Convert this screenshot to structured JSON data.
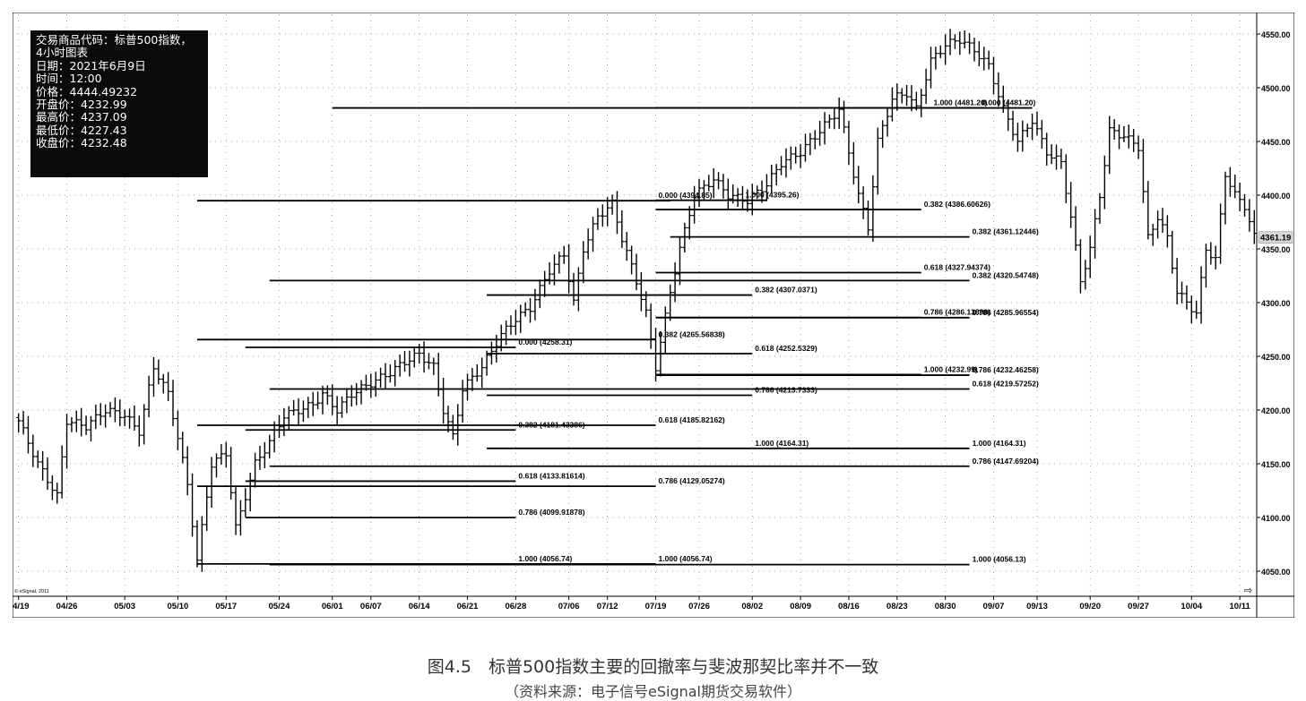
{
  "info": {
    "line1": "交易商品代码：标普500指数，",
    "line2": "4小时图表",
    "date": "日期：2021年6月9日",
    "time": "时间：12:00",
    "price": "价格：4444.49232",
    "open": "开盘价：4232.99",
    "high": "最高价：4237.09",
    "low": "最低价：4227.43",
    "close": "收盘价：4232.48"
  },
  "watermark": "© eSignal, 2011",
  "caption": {
    "title": "图4.5　标普500指数主要的回撤率与斐波那契比率并不一致",
    "source": "（资料来源：电子信号eSignal期货交易软件）"
  },
  "chart_data": {
    "type": "line",
    "chart_style": "OHLC bars (4-hour)",
    "ylim": [
      4040,
      4560
    ],
    "y_ticks": [
      "4550.00",
      "4500.00",
      "4450.00",
      "4400.00",
      "4350.00",
      "4300.00",
      "4250.00",
      "4200.00",
      "4150.00",
      "4100.00",
      "4050.00"
    ],
    "y_tick_values": [
      4550,
      4500,
      4450,
      4400,
      4350,
      4300,
      4250,
      4200,
      4150,
      4100,
      4050
    ],
    "x_tick_labels": [
      "04/19",
      "04/26",
      "05/03",
      "05/10",
      "05/17",
      "05/24",
      "06/01",
      "06/07",
      "06/14",
      "06/21",
      "06/28",
      "07/06",
      "07/12",
      "07/19",
      "07/26",
      "08/02",
      "08/09",
      "08/16",
      "08/23",
      "08/30",
      "09/07",
      "09/13",
      "09/20",
      "09/27",
      "10/04",
      "10/11"
    ],
    "x_tick_index": [
      0,
      10,
      22,
      33,
      43,
      54,
      65,
      73,
      83,
      93,
      103,
      114,
      122,
      132,
      141,
      152,
      162,
      172,
      182,
      192,
      202,
      211,
      222,
      232,
      243,
      253
    ],
    "last_price": {
      "value": 4361.19,
      "label": "4361.19"
    },
    "grid": "dotted",
    "price_anchors": [
      [
        0,
        4190
      ],
      [
        4,
        4150
      ],
      [
        8,
        4120
      ],
      [
        10,
        4190
      ],
      [
        14,
        4185
      ],
      [
        18,
        4200
      ],
      [
        22,
        4195
      ],
      [
        25,
        4180
      ],
      [
        28,
        4240
      ],
      [
        31,
        4215
      ],
      [
        33,
        4175
      ],
      [
        35,
        4130
      ],
      [
        37,
        4060
      ],
      [
        40,
        4150
      ],
      [
        43,
        4160
      ],
      [
        45,
        4090
      ],
      [
        47,
        4120
      ],
      [
        49,
        4150
      ],
      [
        52,
        4170
      ],
      [
        55,
        4195
      ],
      [
        58,
        4200
      ],
      [
        61,
        4205
      ],
      [
        63,
        4215
      ],
      [
        66,
        4200
      ],
      [
        69,
        4215
      ],
      [
        73,
        4225
      ],
      [
        77,
        4235
      ],
      [
        80,
        4245
      ],
      [
        83,
        4252
      ],
      [
        86,
        4240
      ],
      [
        88,
        4200
      ],
      [
        90,
        4175
      ],
      [
        92,
        4220
      ],
      [
        96,
        4240
      ],
      [
        100,
        4270
      ],
      [
        103,
        4285
      ],
      [
        106,
        4295
      ],
      [
        110,
        4330
      ],
      [
        113,
        4345
      ],
      [
        115,
        4300
      ],
      [
        117,
        4350
      ],
      [
        120,
        4380
      ],
      [
        123,
        4392
      ],
      [
        125,
        4360
      ],
      [
        128,
        4320
      ],
      [
        130,
        4290
      ],
      [
        132,
        4240
      ],
      [
        135,
        4310
      ],
      [
        137,
        4350
      ],
      [
        140,
        4400
      ],
      [
        144,
        4415
      ],
      [
        147,
        4400
      ],
      [
        151,
        4395
      ],
      [
        155,
        4410
      ],
      [
        158,
        4430
      ],
      [
        162,
        4440
      ],
      [
        166,
        4460
      ],
      [
        170,
        4480
      ],
      [
        172,
        4440
      ],
      [
        174,
        4400
      ],
      [
        176,
        4370
      ],
      [
        178,
        4450
      ],
      [
        181,
        4490
      ],
      [
        184,
        4495
      ],
      [
        186,
        4480
      ],
      [
        189,
        4525
      ],
      [
        192,
        4540
      ],
      [
        195,
        4545
      ],
      [
        198,
        4535
      ],
      [
        201,
        4520
      ],
      [
        204,
        4480
      ],
      [
        207,
        4450
      ],
      [
        210,
        4470
      ],
      [
        213,
        4440
      ],
      [
        216,
        4430
      ],
      [
        218,
        4380
      ],
      [
        220,
        4320
      ],
      [
        222,
        4350
      ],
      [
        224,
        4400
      ],
      [
        226,
        4460
      ],
      [
        229,
        4455
      ],
      [
        232,
        4445
      ],
      [
        234,
        4360
      ],
      [
        236,
        4380
      ],
      [
        238,
        4360
      ],
      [
        240,
        4310
      ],
      [
        242,
        4300
      ],
      [
        244,
        4290
      ],
      [
        246,
        4350
      ],
      [
        248,
        4340
      ],
      [
        250,
        4420
      ],
      [
        252,
        4400
      ],
      [
        254,
        4390
      ],
      [
        256,
        4361
      ]
    ],
    "fib_lines": [
      {
        "label": "0.000 (4481.20)",
        "y": 4481.2,
        "x0": 65,
        "x1": 210,
        "label_x": 199
      },
      {
        "label": "1.000 (4481.20)",
        "y": 4481.2,
        "x0": 132,
        "x1": 200,
        "label_x": 189
      },
      {
        "label": "0.000 (4394.85)",
        "y": 4394.85,
        "x0": 37,
        "x1": 135,
        "label_x": 132
      },
      {
        "label": "1.000 (4395.26)",
        "y": 4395.26,
        "x0": 132,
        "x1": 155,
        "label_x": 150
      },
      {
        "label": "0.382 (4386.60626)",
        "y": 4386.61,
        "x0": 132,
        "x1": 187,
        "label_x": 187
      },
      {
        "label": "0.382 (4361.12446)",
        "y": 4361.12,
        "x0": 135,
        "x1": 197,
        "label_x": 197
      },
      {
        "label": "0.618 (4327.94374)",
        "y": 4327.94,
        "x0": 132,
        "x1": 187,
        "label_x": 187
      },
      {
        "label": "0.382 (4320.54748)",
        "y": 4320.55,
        "x0": 52,
        "x1": 197,
        "label_x": 197
      },
      {
        "label": "0.382 (4307.0371)",
        "y": 4307.04,
        "x0": 97,
        "x1": 152,
        "label_x": 152
      },
      {
        "label": "0.786 (4286.13898)",
        "y": 4286.14,
        "x0": 132,
        "x1": 187,
        "label_x": 187
      },
      {
        "label": "0.786 (4285.96554)",
        "y": 4285.97,
        "x0": 132,
        "x1": 197,
        "label_x": 197
      },
      {
        "label": "0.382 (4265.56838)",
        "y": 4265.57,
        "x0": 37,
        "x1": 132,
        "label_x": 132
      },
      {
        "label": "0.000 (4258.31)",
        "y": 4258.31,
        "x0": 47,
        "x1": 103,
        "label_x": 103
      },
      {
        "label": "0.618 (4252.5329)",
        "y": 4252.53,
        "x0": 97,
        "x1": 152,
        "label_x": 152
      },
      {
        "label": "1.000 (4232.99)",
        "y": 4232.99,
        "x0": 132,
        "x1": 187,
        "label_x": 187
      },
      {
        "label": "0.786 (4232.46258)",
        "y": 4232.46,
        "x0": 132,
        "x1": 197,
        "label_x": 197
      },
      {
        "label": "0.618 (4219.57252)",
        "y": 4219.57,
        "x0": 52,
        "x1": 197,
        "label_x": 197
      },
      {
        "label": "0.786 (4213.7333)",
        "y": 4213.73,
        "x0": 97,
        "x1": 152,
        "label_x": 152
      },
      {
        "label": "0.618 (4185.82162)",
        "y": 4185.82,
        "x0": 37,
        "x1": 132,
        "label_x": 132
      },
      {
        "label": "0.382 (4181.43386)",
        "y": 4181.43,
        "x0": 47,
        "x1": 103,
        "label_x": 103
      },
      {
        "label": "1.000 (4164.31)",
        "y": 4164.31,
        "x0": 97,
        "x1": 152,
        "label_x": 152
      },
      {
        "label": "1.000 (4164.31)",
        "y": 4164.31,
        "x0": 152,
        "x1": 197,
        "label_x": 197
      },
      {
        "label": "0.786 (4147.69204)",
        "y": 4147.69,
        "x0": 52,
        "x1": 197,
        "label_x": 197
      },
      {
        "label": "0.618 (4133.81614)",
        "y": 4133.82,
        "x0": 47,
        "x1": 103,
        "label_x": 103
      },
      {
        "label": "0.786 (4129.05274)",
        "y": 4129.05,
        "x0": 37,
        "x1": 132,
        "label_x": 132
      },
      {
        "label": "0.786 (4099.91878)",
        "y": 4099.92,
        "x0": 47,
        "x1": 103,
        "label_x": 103
      },
      {
        "label": "1.000 (4056.74)",
        "y": 4056.74,
        "x0": 37,
        "x1": 103,
        "label_x": 103
      },
      {
        "label": "1.000 (4056.74)",
        "y": 4056.74,
        "x0": 103,
        "x1": 132,
        "label_x": 132
      },
      {
        "label": "1.000 (4056.13)",
        "y": 4056.13,
        "x0": 52,
        "x1": 197,
        "label_x": 197
      }
    ]
  }
}
